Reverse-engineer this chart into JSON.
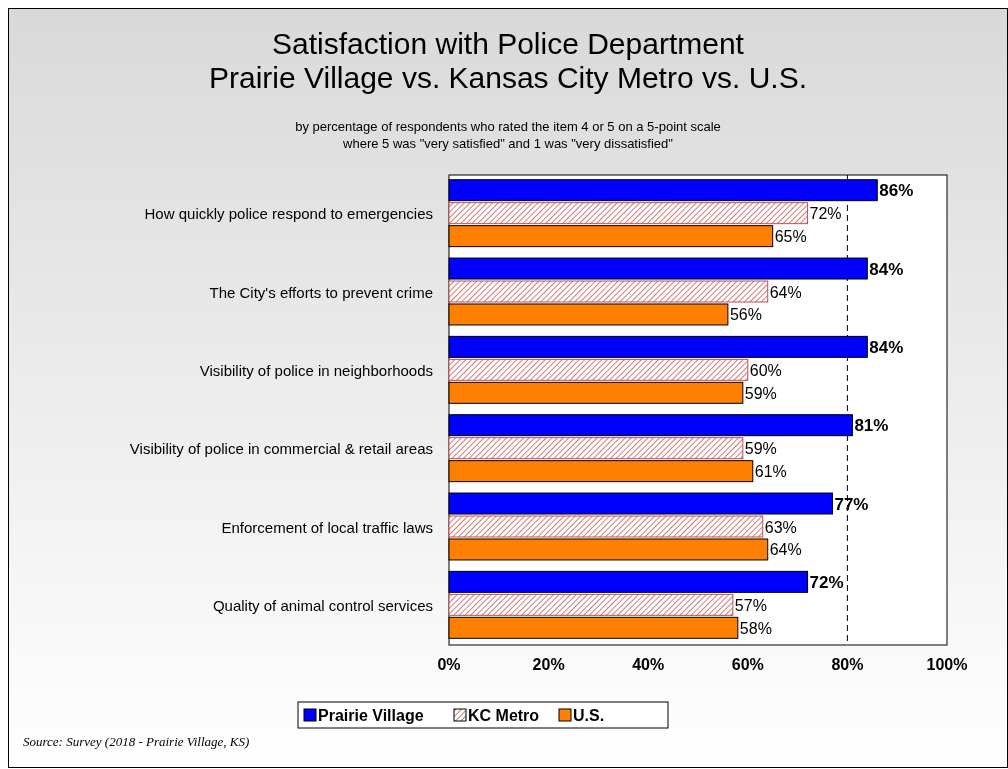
{
  "chart_data": {
    "type": "bar",
    "orientation": "horizontal",
    "title": "Satisfaction with Police Department\nPrairie Village vs. Kansas City Metro vs. U.S.",
    "subtitle": "by percentage of respondents who rated the item 4 or 5 on a 5-point scale\nwhere 5 was \"very satisfied\" and 1 was \"very dissatisfied\"",
    "categories": [
      "How quickly police respond to emergencies",
      "The City's efforts to prevent crime",
      "Visibility of police in neighborhoods",
      "Visibility of police in commercial & retail areas",
      "Enforcement of local traffic laws",
      "Quality of animal control services"
    ],
    "series": [
      {
        "name": "Prairie Village",
        "color": "#0000ff",
        "values": [
          86,
          84,
          84,
          81,
          77,
          72
        ],
        "value_labels": [
          "86%",
          "84%",
          "84%",
          "81%",
          "77%",
          "72%"
        ]
      },
      {
        "name": "KC Metro",
        "color": "#c0504d",
        "values": [
          72,
          64,
          60,
          59,
          63,
          57
        ],
        "value_labels": [
          "72%",
          "64%",
          "60%",
          "59%",
          "63%",
          "57%"
        ]
      },
      {
        "name": "U.S.",
        "color": "#ff8000",
        "values": [
          65,
          56,
          59,
          61,
          64,
          58
        ],
        "value_labels": [
          "65%",
          "56%",
          "59%",
          "61%",
          "64%",
          "58%"
        ]
      }
    ],
    "xlim": [
      0,
      100
    ],
    "xticks": [
      {
        "value": 0,
        "label": "0%"
      },
      {
        "value": 20,
        "label": "20%"
      },
      {
        "value": 40,
        "label": "40%"
      },
      {
        "value": 60,
        "label": "60%"
      },
      {
        "value": 80,
        "label": "80%"
      },
      {
        "value": 100,
        "label": "100%"
      }
    ],
    "ref_lines": [
      {
        "axis": "x",
        "value": 80,
        "line_style": "dashed"
      }
    ],
    "legend": "bottom",
    "annotations": [
      "Source: Survey (2018 - Prairie Village, KS)"
    ]
  }
}
